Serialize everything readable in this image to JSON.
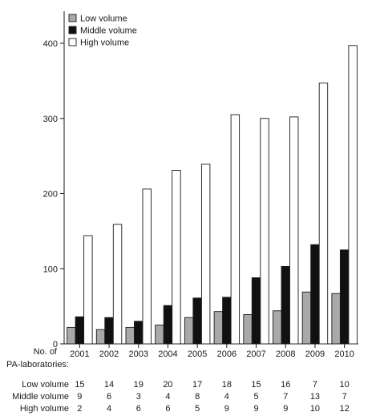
{
  "chart_data": {
    "type": "bar",
    "title": "",
    "xlabel": "",
    "ylabel": "",
    "ylim": [
      0,
      400
    ],
    "yticks": [
      0,
      100,
      200,
      300,
      400
    ],
    "categories": [
      "2001",
      "2002",
      "2003",
      "2004",
      "2005",
      "2006",
      "2007",
      "2008",
      "2009",
      "2010"
    ],
    "series": [
      {
        "name": "Low volume",
        "color": "#a9a9a9",
        "values": [
          22,
          19,
          22,
          25,
          35,
          43,
          39,
          44,
          69,
          67
        ]
      },
      {
        "name": "Middle volume",
        "color": "#111111",
        "values": [
          36,
          35,
          30,
          51,
          61,
          62,
          88,
          103,
          132,
          125
        ]
      },
      {
        "name": "High volume",
        "color": "#ffffff",
        "values": [
          144,
          159,
          206,
          231,
          239,
          305,
          300,
          302,
          347,
          397
        ]
      }
    ],
    "legend_position": "top-left",
    "grid": false
  },
  "table": {
    "header_line1": "No. of",
    "header_line2": "PA-laboratories:",
    "rows": [
      {
        "label": "Low volume",
        "values": [
          "15",
          "14",
          "19",
          "20",
          "17",
          "18",
          "15",
          "16",
          "7",
          "10"
        ]
      },
      {
        "label": "Middle volume",
        "values": [
          "9",
          "6",
          "3",
          "4",
          "8",
          "4",
          "5",
          "7",
          "13",
          "7"
        ]
      },
      {
        "label": "High volume",
        "values": [
          "2",
          "4",
          "6",
          "6",
          "5",
          "9",
          "9",
          "9",
          "10",
          "12"
        ]
      }
    ]
  }
}
